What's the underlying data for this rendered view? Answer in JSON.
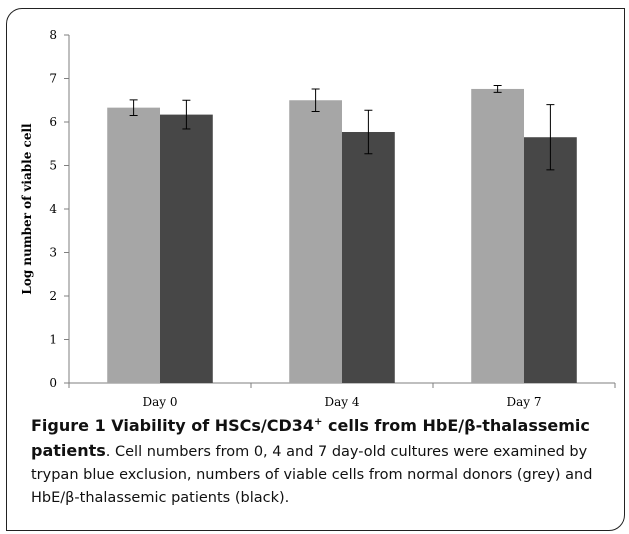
{
  "chart_data": {
    "type": "bar",
    "categories": [
      "Day 0",
      "Day 4",
      "Day 7"
    ],
    "series": [
      {
        "values": [
          6.33,
          6.5,
          6.76
        ],
        "errors": [
          0.18,
          0.26,
          0.08
        ],
        "color": "#a6a6a6"
      },
      {
        "values": [
          6.17,
          5.77,
          5.65
        ],
        "errors": [
          0.33,
          0.5,
          0.75
        ],
        "color": "#474747"
      }
    ],
    "ylabel": "Log number of viable cell",
    "ylim": [
      0,
      8
    ],
    "yticks": [
      0,
      1,
      2,
      3,
      4,
      5,
      6,
      7,
      8
    ],
    "grid": false
  },
  "caption": {
    "title_part1": "Figure 1 Viability of HSCs/CD34",
    "title_sup": "+",
    "title_part2": " cells from HbE/β-thalassemic patients",
    "body": ". Cell numbers from 0, 4 and 7 day-old cultures were examined by trypan blue exclusion, numbers of viable cells from normal donors (grey) and HbE/β-thalassemic patients (black)."
  }
}
